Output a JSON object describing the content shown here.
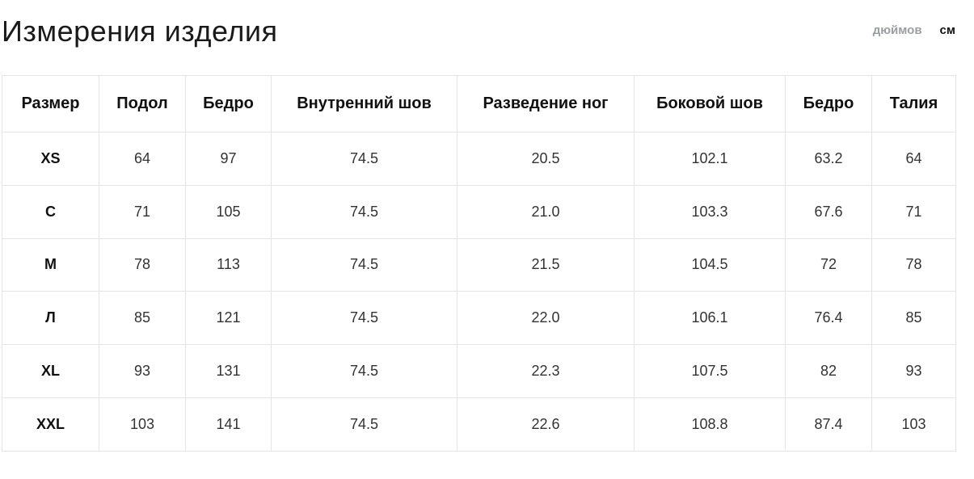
{
  "header": {
    "title": "Измерения изделия",
    "units": [
      "дюймов",
      "см"
    ]
  },
  "table": {
    "columns": [
      "Размер",
      "Подол",
      "Бедро",
      "Внутренний шов",
      "Разведение ног",
      "Боковой шов",
      "Бедро",
      "Талия"
    ],
    "rows": [
      [
        "XS",
        "64",
        "97",
        "74.5",
        "20.5",
        "102.1",
        "63.2",
        "64"
      ],
      [
        "С",
        "71",
        "105",
        "74.5",
        "21.0",
        "103.3",
        "67.6",
        "71"
      ],
      [
        "M",
        "78",
        "113",
        "74.5",
        "21.5",
        "104.5",
        "72",
        "78"
      ],
      [
        "Л",
        "85",
        "121",
        "74.5",
        "22.0",
        "106.1",
        "76.4",
        "85"
      ],
      [
        "XL",
        "93",
        "131",
        "74.5",
        "22.3",
        "107.5",
        "82",
        "93"
      ],
      [
        "XXL",
        "103",
        "141",
        "74.5",
        "22.6",
        "108.8",
        "87.4",
        "103"
      ]
    ]
  }
}
